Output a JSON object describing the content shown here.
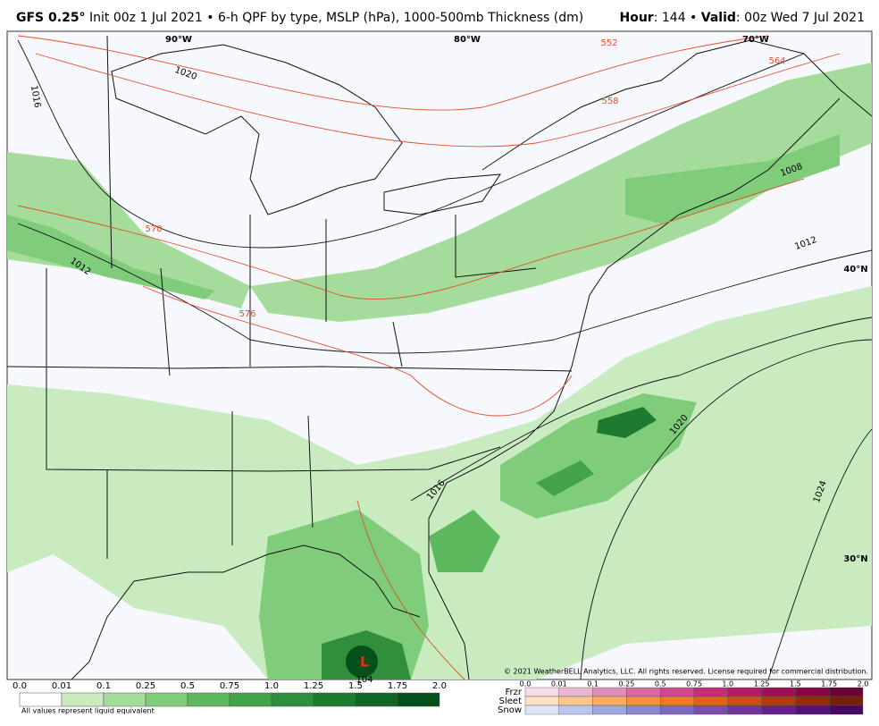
{
  "header": {
    "model": "GFS 0.25°",
    "title": "Init 00z 1 Jul 2021 • 6-h QPF by type, MSLP (hPa), 1000-500mb Thickness (dm)",
    "hour_key": "Hour",
    "hour": ": 144 • ",
    "valid_key": "Valid",
    "valid": ": 00z Wed 7 Jul 2021"
  },
  "map": {
    "longitudes": [
      "90°W",
      "80°W",
      "70°W"
    ],
    "latitudes": [
      "40°N",
      "30°N"
    ],
    "isobars": [
      "1016",
      "1020",
      "1012",
      "1008",
      "1012",
      "1020",
      "1016",
      "1024",
      "104"
    ],
    "thickness": [
      "552",
      "558",
      "564",
      "570",
      "576"
    ],
    "low": "L",
    "copyright": "© 2021 WeatherBELL Analytics, LLC. All rights reserved. License required for commercial distribution."
  },
  "qpf_scale": {
    "labels": [
      "0.0",
      "0.01",
      "0.1",
      "0.25",
      "0.5",
      "0.75",
      "1.0",
      "1.25",
      "1.5",
      "1.75",
      "2.0"
    ],
    "colors": [
      "#ffffff",
      "#c8ebc0",
      "#a5dc9b",
      "#7fcc7a",
      "#5db85e",
      "#43a34a",
      "#2f8f3c",
      "#1d7b30",
      "#0f6625",
      "#05501b"
    ],
    "note": "All values represent liquid equivalent"
  },
  "ptype_scale": {
    "labels": [
      "0.0",
      "0.01",
      "0.1",
      "0.25",
      "0.5",
      "0.75",
      "1.0",
      "1.25",
      "1.5",
      "1.75",
      "2.0"
    ],
    "rows": [
      {
        "name": "Frzr",
        "colors": [
          "#f6dbe8",
          "#e9b6cf",
          "#dd8fb6",
          "#d66aa0",
          "#d1478b",
          "#c82c78",
          "#b51a66",
          "#9e0f55",
          "#870845",
          "#6b0335"
        ]
      },
      {
        "name": "Sleet",
        "colors": [
          "#fde2c3",
          "#fbc98e",
          "#f8ad5c",
          "#f5923a",
          "#ef7a22",
          "#e06418",
          "#c94f12",
          "#b03d0c",
          "#932e08",
          "#762104"
        ]
      },
      {
        "name": "Snow",
        "colors": [
          "#dde4f5",
          "#bcc6ec",
          "#9ea6de",
          "#8a86cf",
          "#8068c0",
          "#7a4cb0",
          "#71339f",
          "#661f8c",
          "#571277",
          "#460862"
        ]
      }
    ]
  }
}
